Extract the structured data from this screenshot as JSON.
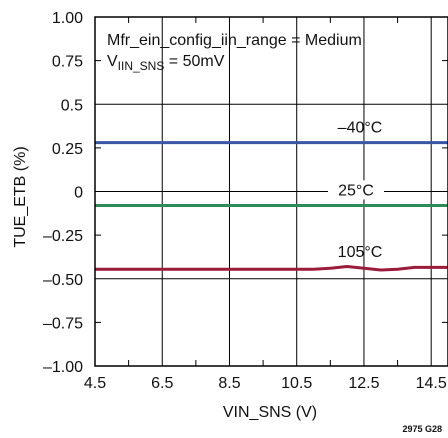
{
  "chart_data": {
    "type": "line",
    "xlabel": "VIN_SNS (V)",
    "ylabel": "TUE_ETB (%)",
    "xlim": [
      4.5,
      15.0
    ],
    "ylim": [
      -1.0,
      1.0
    ],
    "x_ticks": [
      4.5,
      6.5,
      8.5,
      10.5,
      12.5,
      14.5
    ],
    "x_tick_labels": [
      "4.5",
      "6.5",
      "8.5",
      "10.5",
      "12.5",
      "14.5"
    ],
    "y_ticks": [
      1.0,
      0.75,
      0.5,
      0.25,
      0,
      -0.25,
      -0.5,
      -0.75,
      -1.0
    ],
    "y_tick_labels": [
      "1.00",
      "0.75",
      "0.5",
      "0.25",
      "0",
      "–0.25",
      "–0.50",
      "–0.75",
      "–1.00"
    ],
    "grid": true,
    "annotation_line1": "Mfr_ein_config_iin_range = Medium",
    "annotation_line2_main": "V",
    "annotation_line2_sub": "IIN_SNS",
    "annotation_line2_rest": " = 50mV",
    "figure_id": "2975 G28",
    "series": [
      {
        "name": "–40°C",
        "color": "#3a55a4",
        "x": [
          4.5,
          6.5,
          8.5,
          10.5,
          12.5,
          15.0
        ],
        "values": [
          0.28,
          0.28,
          0.28,
          0.28,
          0.28,
          0.28
        ]
      },
      {
        "name": "25°C",
        "color": "#2e8b57",
        "x": [
          4.5,
          6.5,
          8.5,
          10.5,
          12.5,
          15.0
        ],
        "values": [
          -0.08,
          -0.08,
          -0.08,
          -0.08,
          -0.08,
          -0.08
        ]
      },
      {
        "name": "105°C",
        "color": "#9b1b3a",
        "x": [
          4.5,
          6.5,
          8.5,
          10.5,
          11.0,
          11.5,
          12.0,
          12.5,
          13.0,
          13.5,
          14.0,
          14.5,
          15.0
        ],
        "values": [
          -0.445,
          -0.445,
          -0.445,
          -0.445,
          -0.445,
          -0.44,
          -0.43,
          -0.44,
          -0.45,
          -0.445,
          -0.435,
          -0.435,
          -0.435
        ]
      }
    ]
  }
}
